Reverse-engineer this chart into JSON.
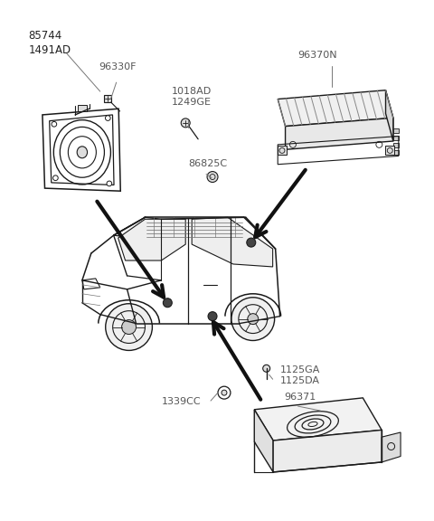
{
  "bg_color": "#ffffff",
  "line_color": "#1a1a1a",
  "dark_color": "#111111",
  "gray_color": "#777777",
  "med_gray": "#aaaaaa",
  "light_gray": "#dddddd",
  "labels": {
    "lbl_85744": "85744\n1491AD",
    "lbl_96330F": "96330F",
    "lbl_1018AD": "1018AD\n1249GE",
    "lbl_86825C": "86825C",
    "lbl_96370N": "96370N",
    "lbl_1339CC": "1339CC",
    "lbl_1125GA": "1125GA\n1125DA",
    "lbl_96371": "96371"
  },
  "fontsize_label": 8.5,
  "arrow_lw": 3.0
}
